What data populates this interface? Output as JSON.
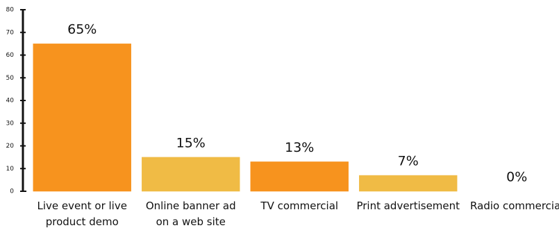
{
  "chart_data": {
    "type": "bar",
    "categories": [
      "Live event or live product demo",
      "Online banner ad on a web site",
      "TV commercial",
      "Print advertisement",
      "Radio commercial"
    ],
    "values": [
      65,
      15,
      13,
      7,
      0
    ],
    "value_labels": [
      "65%",
      "15%",
      "13%",
      "7%",
      "0%"
    ],
    "colors": [
      "#f7931e",
      "#f0bb45",
      "#f7931e",
      "#f0bb45",
      "#f7931e"
    ],
    "ylim": [
      0,
      80
    ],
    "yticks": [
      0,
      10,
      20,
      30,
      40,
      50,
      60,
      70,
      80
    ],
    "grid": false
  }
}
